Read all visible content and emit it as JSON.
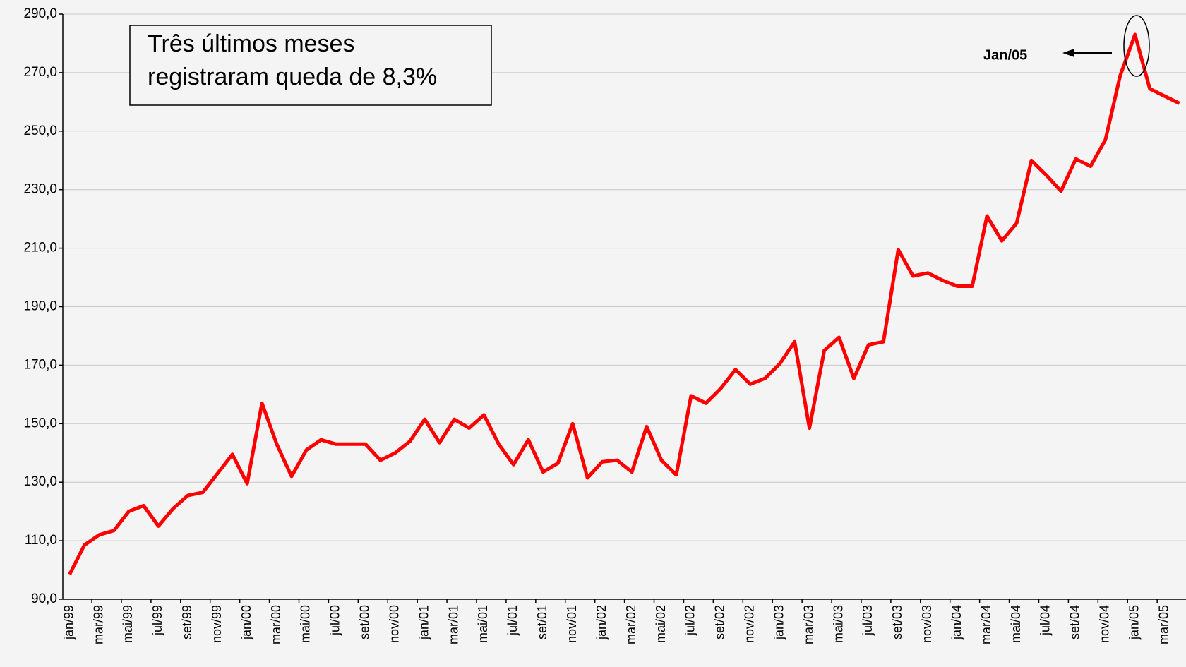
{
  "chart_data": {
    "type": "line",
    "annotation": [
      "Três últimos meses",
      "registraram queda de 8,3%"
    ],
    "callout": "Jan/05",
    "categories": [
      "jan/99",
      null,
      "mar/99",
      null,
      "mai/99",
      null,
      "jul/99",
      null,
      "set/99",
      null,
      "nov/99",
      null,
      "jan/00",
      null,
      "mar/00",
      null,
      "mai/00",
      null,
      "jul/00",
      null,
      "set/00",
      null,
      "nov/00",
      null,
      "jan/01",
      null,
      "mar/01",
      null,
      "mai/01",
      null,
      "jul/01",
      null,
      "set/01",
      null,
      "nov/01",
      null,
      "jan/02",
      null,
      "mar/02",
      null,
      "mai/02",
      null,
      "jul/02",
      null,
      "set/02",
      null,
      "nov/02",
      null,
      "jan/03",
      null,
      "mar/03",
      null,
      "mai/03",
      null,
      "jul/03",
      null,
      "set/03",
      null,
      "nov/03",
      null,
      "jan/04",
      null,
      "mar/04",
      null,
      "mai/04",
      null,
      "jul/04",
      null,
      "set/04",
      null,
      "nov/04",
      null,
      "jan/05",
      null,
      "mar/05",
      null
    ],
    "series": [
      {
        "color": "#ff0000",
        "values": [
          98.5,
          108.5,
          112,
          113.5,
          120,
          122,
          115,
          121,
          125.5,
          126.5,
          133,
          139.5,
          129.5,
          157,
          143,
          132,
          141,
          144.5,
          143,
          143,
          143,
          137.5,
          140,
          144,
          151.5,
          143.5,
          151.5,
          148.5,
          153,
          143,
          136,
          144.5,
          133.5,
          136.5,
          150,
          131.5,
          137,
          137.5,
          133.5,
          149,
          137.5,
          132.5,
          159.5,
          157,
          162,
          168.5,
          163.5,
          165.5,
          170.5,
          178,
          148.5,
          175,
          179.5,
          165.5,
          177,
          178,
          209.5,
          200.5,
          201.5,
          199,
          197,
          197,
          221,
          212.5,
          218.5,
          240,
          235,
          229.5,
          240.5,
          238,
          247,
          269,
          283,
          264.5,
          262,
          259.5
        ]
      }
    ],
    "ylim": [
      90,
      290
    ],
    "yticks": [
      {
        "value": 90,
        "label": "90,0"
      },
      {
        "value": 110,
        "label": "110,0"
      },
      {
        "value": 130,
        "label": "130,0"
      },
      {
        "value": 150,
        "label": "150,0"
      },
      {
        "value": 170,
        "label": "170,0"
      },
      {
        "value": 190,
        "label": "190,0"
      },
      {
        "value": 210,
        "label": "210,0"
      },
      {
        "value": 230,
        "label": "230,0"
      },
      {
        "value": 250,
        "label": "250,0"
      },
      {
        "value": 270,
        "label": "270,0"
      },
      {
        "value": 290,
        "label": "290,0"
      }
    ],
    "grid": true
  }
}
